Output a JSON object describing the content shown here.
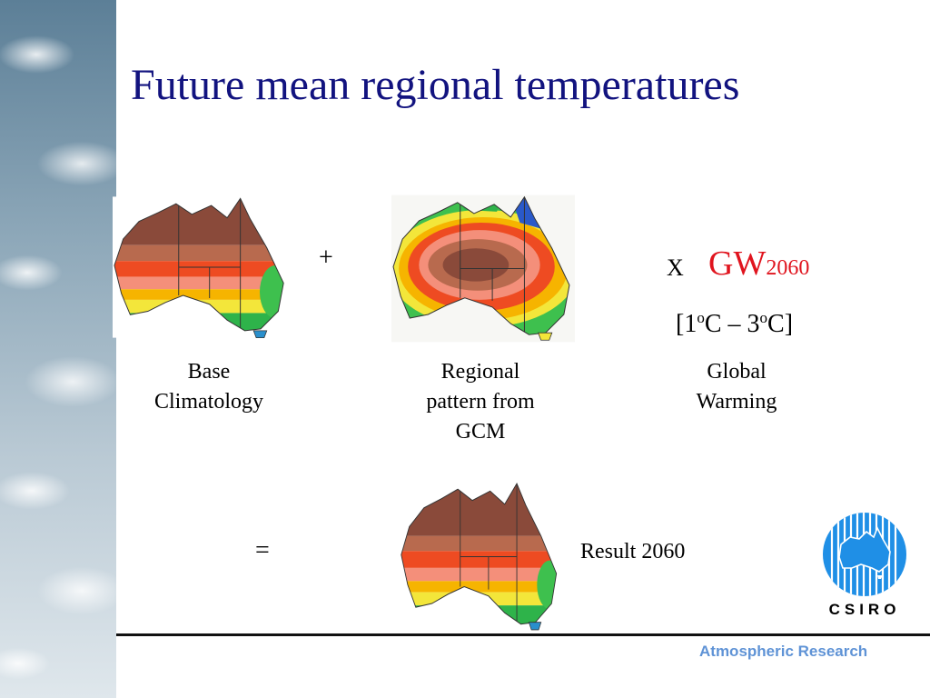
{
  "slide": {
    "title": "Future mean regional temperatures",
    "operators": {
      "plus": "+",
      "times": "X",
      "equals": "="
    },
    "maps": [
      {
        "label_lines": [
          "Base",
          "Climatology"
        ],
        "icon": "australia-temperature-map"
      },
      {
        "label_lines": [
          "Regional",
          "pattern from",
          "GCM"
        ],
        "icon": "australia-gcm-pattern-map"
      },
      {
        "label_lines": [
          "Global",
          "Warming"
        ]
      }
    ],
    "gw": {
      "symbol": "GW",
      "subscript": "2060",
      "color": "#e0141e"
    },
    "range": {
      "open": "[1",
      "sup1": "o",
      "mid": "C – 3",
      "sup2": "o",
      "close": "C]"
    },
    "result_label": "Result 2060",
    "footer": "Atmospheric Research",
    "logo": {
      "text": "CSIRO",
      "color": "#1f8fe6"
    },
    "title_color": "#12137f"
  }
}
